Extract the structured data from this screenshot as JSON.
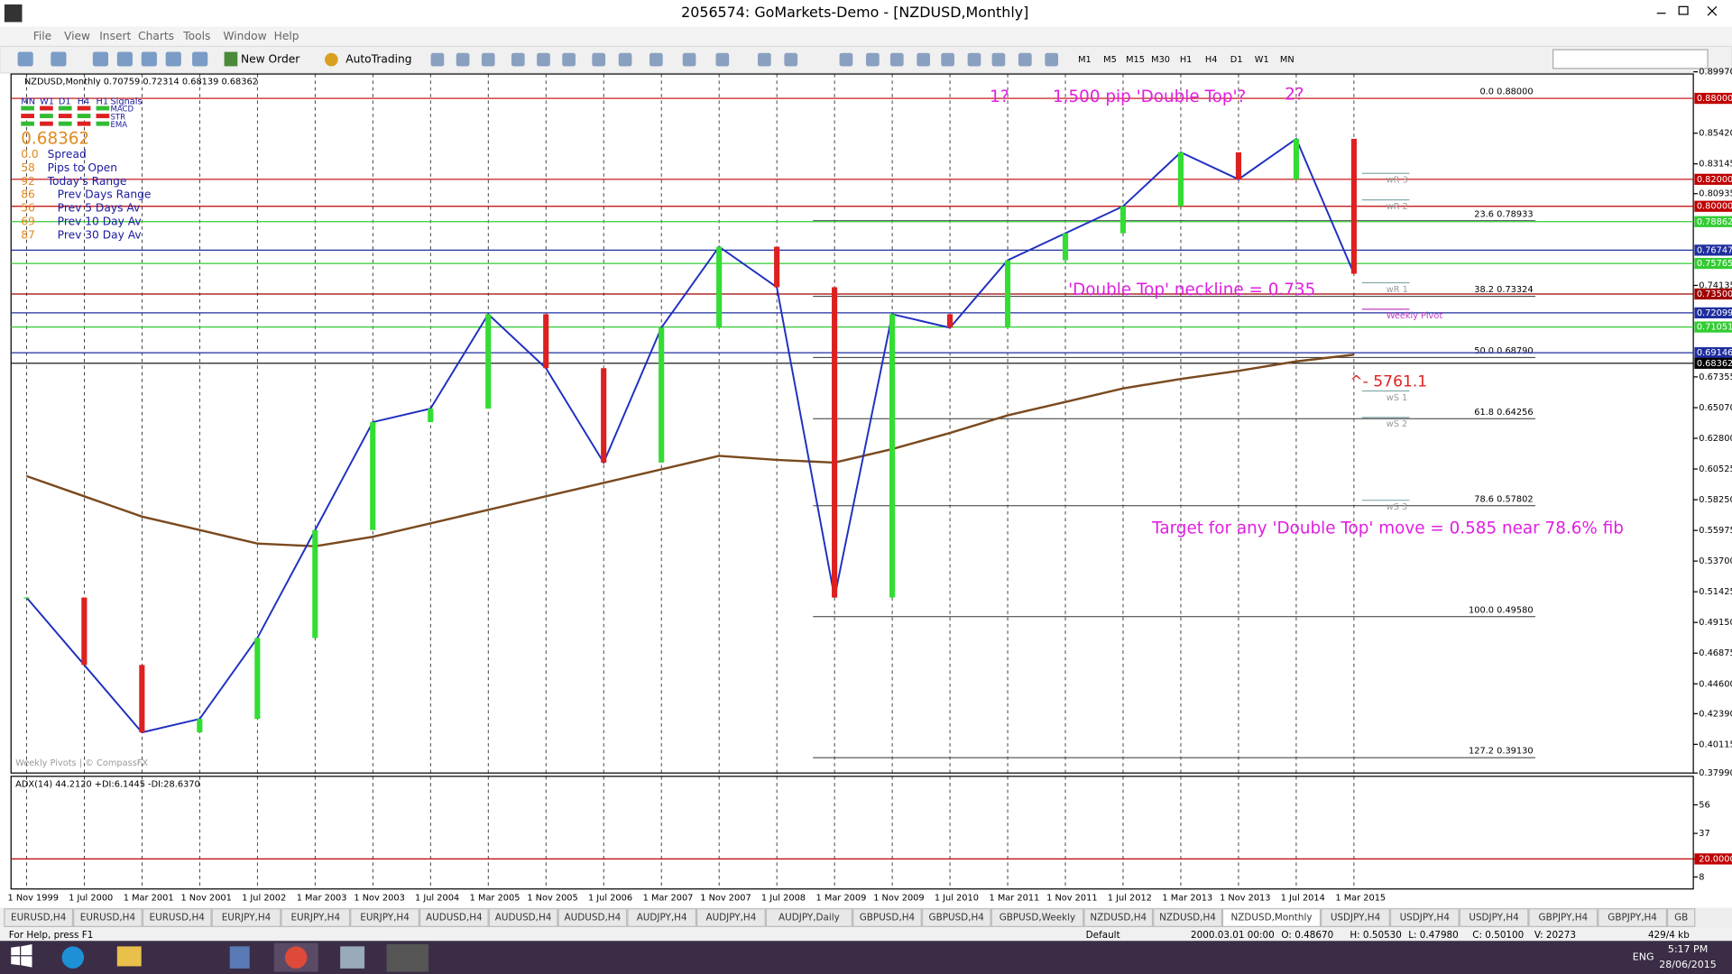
{
  "window": {
    "title": "2056574: GoMarkets-Demo - [NZDUSD,Monthly]"
  },
  "menu": [
    "File",
    "View",
    "Insert",
    "Charts",
    "Tools",
    "Window",
    "Help"
  ],
  "toolbar": {
    "new_order": "New Order",
    "autotrading": "AutoTrading",
    "timeframes": [
      "M1",
      "M5",
      "M15",
      "M30",
      "H1",
      "H4",
      "D1",
      "W1",
      "MN"
    ]
  },
  "chart": {
    "header": "NZDUSD,Monthly  0.70759 0.72314 0.68139 0.68362",
    "info_panel": {
      "timeframes": [
        "MN",
        "W1",
        "D1",
        "H4",
        "H1"
      ],
      "signals": "Signals",
      "indicators": [
        "MACD",
        "STR",
        "EMA"
      ],
      "price": "0.68362",
      "rows": [
        {
          "value": "0.0",
          "label": "Spread"
        },
        {
          "value": "58",
          "label": "Pips to Open"
        },
        {
          "value": "92",
          "label": "Today's Range"
        },
        {
          "value": "86",
          "label": "Prev Days Range"
        },
        {
          "value": "56",
          "label": "Prev 5 Days Av"
        },
        {
          "value": "69",
          "label": "Prev 10 Day Av"
        },
        {
          "value": "87",
          "label": "Prev 30 Day Av"
        }
      ]
    },
    "watermark": "Weekly Pivots | © CompassFX",
    "annotations": [
      "1?",
      "1,500 pip 'Double Top'?",
      "2?",
      "'Double Top' neckline = 0.735",
      "^- 5761.1",
      "Target for any 'Double Top' move = 0.585 near 78.6% fib"
    ],
    "pivots": [
      "wR 3",
      "wR 2",
      "wR 1",
      "Weekly Pivot",
      "wS 1",
      "wS 2",
      "wS 3"
    ],
    "x": [
      "1 Nov 1999",
      "1 Jul 2000",
      "1 Mar 2001",
      "1 Nov 2001",
      "1 Jul 2002",
      "1 Mar 2003",
      "1 Nov 2003",
      "1 Jul 2004",
      "1 Mar 2005",
      "1 Nov 2005",
      "1 Jul 2006",
      "1 Mar 2007",
      "1 Nov 2007",
      "1 Jul 2008",
      "1 Mar 2009",
      "1 Nov 2009",
      "1 Jul 2010",
      "1 Mar 2011",
      "1 Nov 2011",
      "1 Jul 2012",
      "1 Mar 2013",
      "1 Nov 2013",
      "1 Jul 2014",
      "1 Mar 2015"
    ],
    "close": [
      0.51,
      0.46,
      0.41,
      0.42,
      0.48,
      0.56,
      0.64,
      0.65,
      0.72,
      0.68,
      0.61,
      0.71,
      0.77,
      0.74,
      0.51,
      0.72,
      0.71,
      0.76,
      0.78,
      0.8,
      0.84,
      0.82,
      0.85,
      0.75
    ],
    "ma": [
      0.6,
      0.585,
      0.57,
      0.56,
      0.55,
      0.548,
      0.555,
      0.565,
      0.575,
      0.585,
      0.595,
      0.605,
      0.615,
      0.612,
      0.61,
      0.62,
      0.632,
      0.645,
      0.655,
      0.665,
      0.672,
      0.678,
      0.685,
      0.69
    ],
    "ylim": [
      0.3799,
      0.8997
    ],
    "price_axis": [
      {
        "value": 0.8997,
        "label": "0.89970"
      },
      {
        "value": 0.8542,
        "label": "0.85420"
      },
      {
        "value": 0.83145,
        "label": "0.83145"
      },
      {
        "value": 0.80935,
        "label": "0.80935"
      },
      {
        "value": 0.74135,
        "label": "0.74135"
      },
      {
        "value": 0.67355,
        "label": "0.67355"
      },
      {
        "value": 0.6507,
        "label": "0.65070"
      },
      {
        "value": 0.628,
        "label": "0.62800"
      },
      {
        "value": 0.60525,
        "label": "0.60525"
      },
      {
        "value": 0.5825,
        "label": "0.58250"
      },
      {
        "value": 0.55975,
        "label": "0.55975"
      },
      {
        "value": 0.537,
        "label": "0.53700"
      },
      {
        "value": 0.51425,
        "label": "0.51425"
      },
      {
        "value": 0.4915,
        "label": "0.49150"
      },
      {
        "value": 0.46875,
        "label": "0.46875"
      },
      {
        "value": 0.446,
        "label": "0.44600"
      },
      {
        "value": 0.4239,
        "label": "0.42390"
      },
      {
        "value": 0.40115,
        "label": "0.40115"
      },
      {
        "value": 0.3799,
        "label": "0.37990"
      }
    ],
    "levels": [
      {
        "value": 0.88,
        "label": "0.88000",
        "color": "#c00000"
      },
      {
        "value": 0.82,
        "label": "0.82000",
        "color": "#c00000"
      },
      {
        "value": 0.8,
        "label": "0.80000",
        "color": "#c00000"
      },
      {
        "value": 0.78862,
        "label": "0.78862",
        "color": "#33cc33"
      },
      {
        "value": 0.76747,
        "label": "0.76747",
        "color": "#1f2f9f"
      },
      {
        "value": 0.75765,
        "label": "0.75765",
        "color": "#33cc33"
      },
      {
        "value": 0.735,
        "label": "0.73500",
        "color": "#a00000"
      },
      {
        "value": 0.72099,
        "label": "0.72099",
        "color": "#1f2f9f"
      },
      {
        "value": 0.71051,
        "label": "0.71051",
        "color": "#33cc33"
      },
      {
        "value": 0.69146,
        "label": "0.69146",
        "color": "#1f2f9f"
      },
      {
        "value": 0.68362,
        "label": "0.68362",
        "color": "#000000"
      }
    ],
    "fib": [
      {
        "value": 0.88,
        "label": "0.0  0.88000"
      },
      {
        "value": 0.78933,
        "label": "23.6  0.78933"
      },
      {
        "value": 0.73324,
        "label": "38.2  0.73324"
      },
      {
        "value": 0.6879,
        "label": "50.0  0.68790"
      },
      {
        "value": 0.64256,
        "label": "61.8  0.64256"
      },
      {
        "value": 0.57802,
        "label": "78.6  0.57802"
      },
      {
        "value": 0.4958,
        "label": "100.0  0.49580"
      },
      {
        "value": 0.3913,
        "label": "127.2  0.39130"
      }
    ]
  },
  "adx": {
    "header": "ADX(14) 44.2120 +DI:6.1445 -DI:28.6370",
    "ylim": [
      0,
      75
    ],
    "axis": [
      56,
      37,
      {
        "value": 20,
        "label": "20.0000"
      },
      8
    ]
  },
  "tabs": [
    {
      "label": "EURUSD,H4",
      "active": false
    },
    {
      "label": "EURUSD,H4",
      "active": false
    },
    {
      "label": "EURUSD,H4",
      "active": false
    },
    {
      "label": "EURJPY,H4",
      "active": false
    },
    {
      "label": "EURJPY,H4",
      "active": false
    },
    {
      "label": "EURJPY,H4",
      "active": false
    },
    {
      "label": "AUDUSD,H4",
      "active": false
    },
    {
      "label": "AUDUSD,H4",
      "active": false
    },
    {
      "label": "AUDUSD,H4",
      "active": false
    },
    {
      "label": "AUDJPY,H4",
      "active": false
    },
    {
      "label": "AUDJPY,H4",
      "active": false
    },
    {
      "label": "AUDJPY,Daily",
      "active": false
    },
    {
      "label": "GBPUSD,H4",
      "active": false
    },
    {
      "label": "GBPUSD,H4",
      "active": false
    },
    {
      "label": "GBPUSD,Weekly",
      "active": false
    },
    {
      "label": "NZDUSD,H4",
      "active": false
    },
    {
      "label": "NZDUSD,H4",
      "active": false
    },
    {
      "label": "NZDUSD,Monthly",
      "active": true
    },
    {
      "label": "USDJPY,H4",
      "active": false
    },
    {
      "label": "USDJPY,H4",
      "active": false
    },
    {
      "label": "USDJPY,H4",
      "active": false
    },
    {
      "label": "GBPJPY,H4",
      "active": false
    },
    {
      "label": "GBPJPY,H4",
      "active": false
    },
    {
      "label": "GB",
      "active": false
    }
  ],
  "status": {
    "help": "For Help, press F1",
    "profile": "Default",
    "fields": [
      "2000.03.01 00:00",
      "O: 0.48670",
      "H: 0.50530",
      "L: 0.47980",
      "C: 0.50100",
      "V: 20273"
    ],
    "traffic": "429/4 kb"
  },
  "taskbar": {
    "lang": "ENG",
    "time": "5:17 PM",
    "date": "28/06/2015"
  }
}
